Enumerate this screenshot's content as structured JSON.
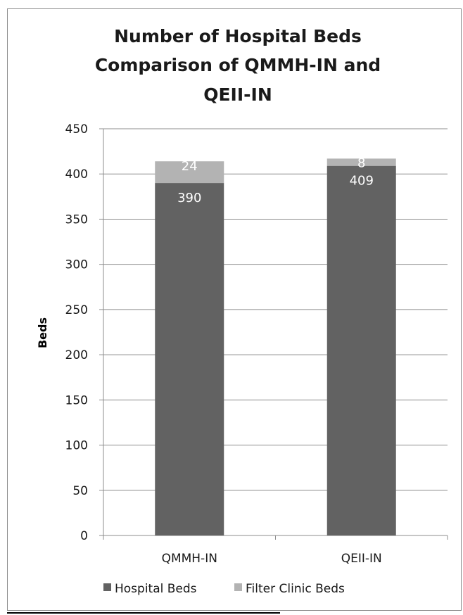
{
  "chart_data": {
    "type": "bar",
    "stacked": true,
    "title_lines": [
      "Number of Hospital Beds",
      "Comparison of QMMH-IN and",
      "QEII-IN"
    ],
    "xlabel": "",
    "ylabel": "Beds",
    "ylim": [
      0,
      450
    ],
    "yticks": [
      0,
      50,
      100,
      150,
      200,
      250,
      300,
      350,
      400,
      450
    ],
    "grid": true,
    "legend_position": "bottom",
    "categories": [
      "QMMH-IN",
      "QEII-IN"
    ],
    "series": [
      {
        "name": "Hospital Beds",
        "values": [
          390,
          409
        ],
        "color": "#626262"
      },
      {
        "name": "Filter Clinic Beds",
        "values": [
          24,
          8
        ],
        "color": "#b3b3b3"
      }
    ]
  }
}
